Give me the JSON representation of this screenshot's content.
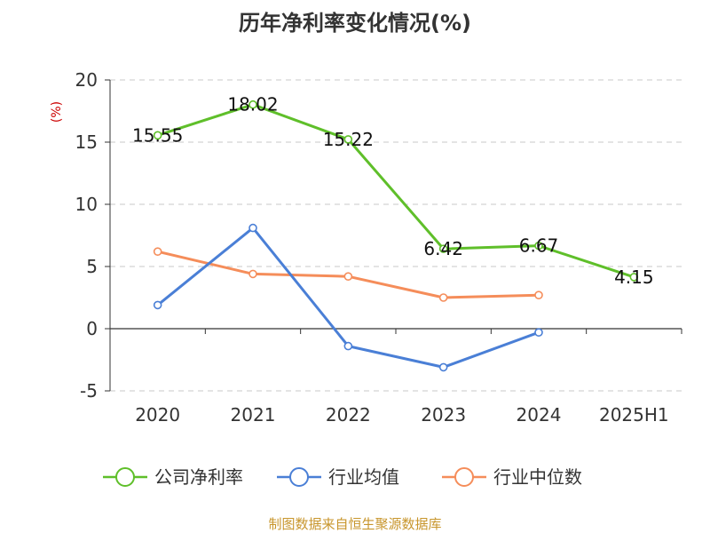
{
  "chart_data": {
    "type": "line",
    "title": "历年净利率变化情况(%)",
    "ylabel": "(%)",
    "categories": [
      "2020",
      "2021",
      "2022",
      "2023",
      "2024",
      "2025H1"
    ],
    "ylim": [
      -5,
      20
    ],
    "yticks": [
      20,
      15,
      10,
      5,
      0,
      -5
    ],
    "grid": true,
    "legend_position": "bottom",
    "series": [
      {
        "name": "公司净利率",
        "color": "#5fbf2a",
        "values": [
          15.55,
          18.02,
          15.22,
          6.42,
          6.67,
          4.15
        ],
        "labels": [
          "15.55",
          "18.02",
          "15.22",
          "6.42",
          "6.67",
          "4.15"
        ]
      },
      {
        "name": "行业均值",
        "color": "#4a7fd6",
        "values": [
          1.9,
          8.1,
          -1.4,
          -3.1,
          -0.3,
          null
        ]
      },
      {
        "name": "行业中位数",
        "color": "#f58d5a",
        "values": [
          6.2,
          4.4,
          4.2,
          2.5,
          2.7,
          null
        ]
      }
    ]
  },
  "source": "制图数据来自恒生聚源数据库"
}
